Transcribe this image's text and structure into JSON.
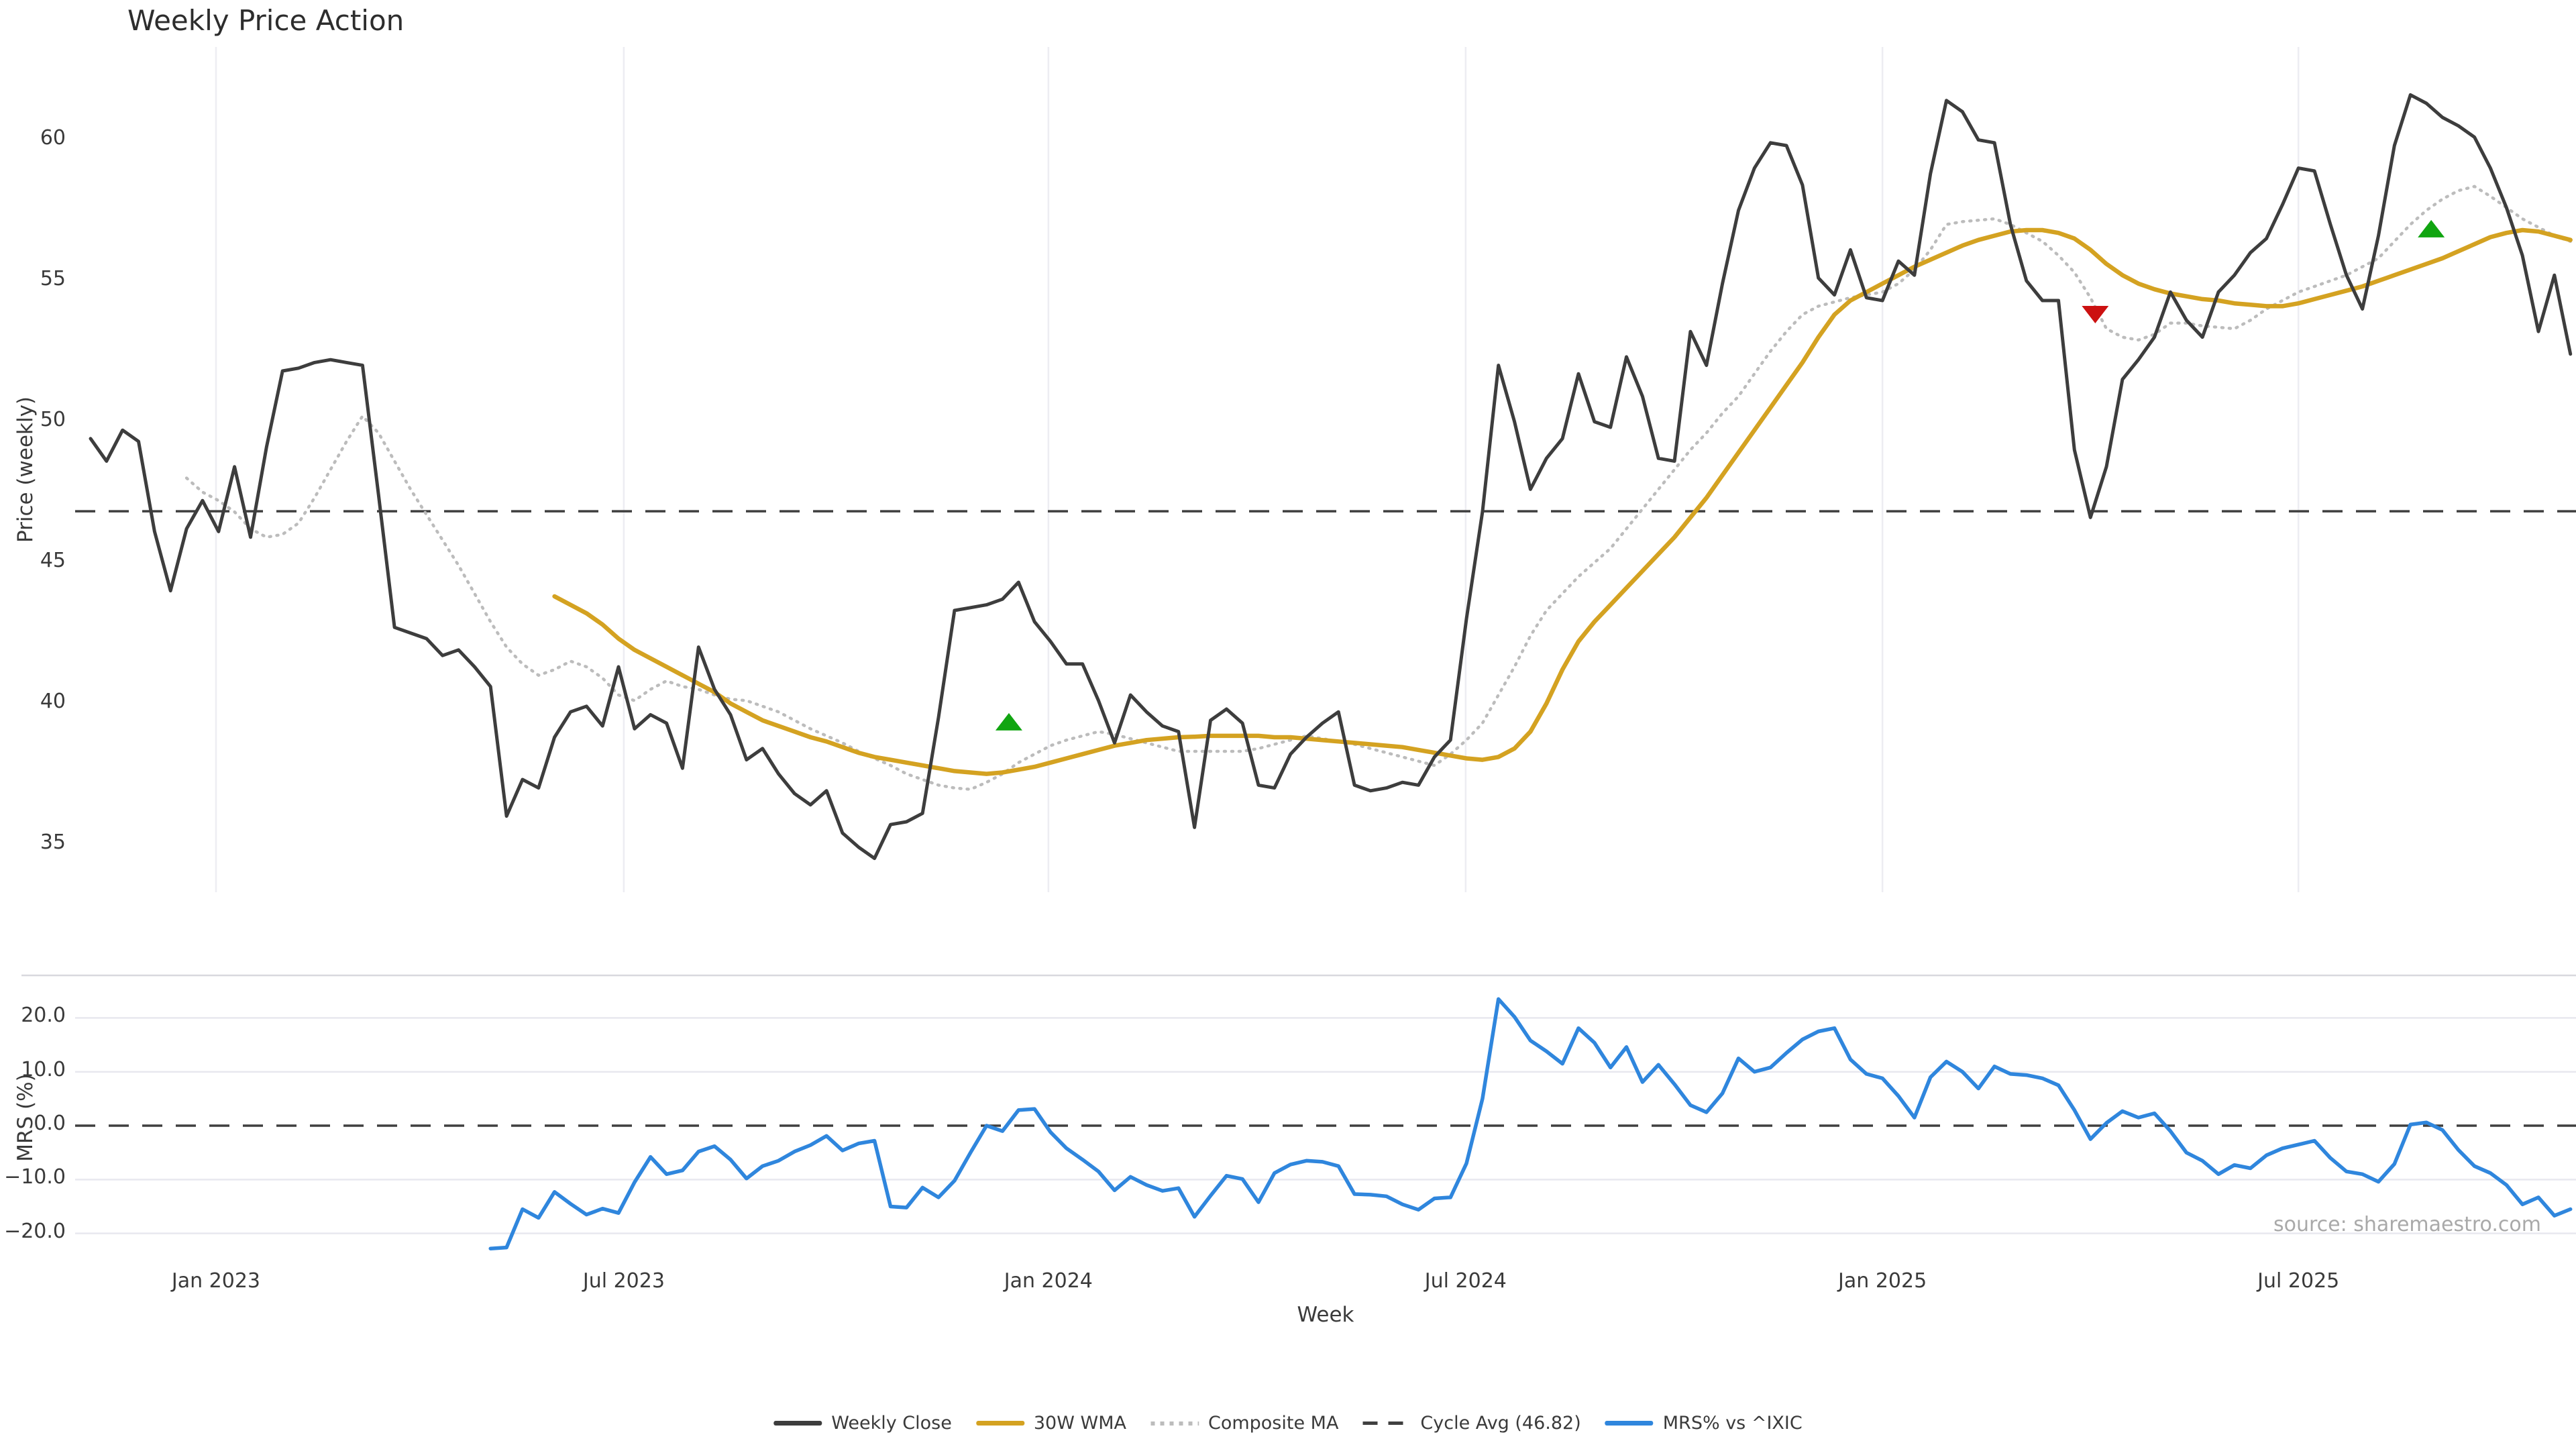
{
  "title": "Weekly Price Action",
  "source": "source: sharemaestro.com",
  "colors": {
    "weekly_close": "#3d3d3d",
    "wma30": "#d4a221",
    "composite_ma": "#bcbcbc",
    "cycle_avg": "#3f3f3f",
    "mrs": "#2f86dd",
    "buy_marker": "#11a511",
    "sell_marker": "#cc1111",
    "gridline_vertical": "#ededf2",
    "gridline_horizontal": "#e8e8ef",
    "panel_border": "#d8d8de",
    "tick_text": "#3a3a3a"
  },
  "top_panel": {
    "ylabel": "Price (weekly)",
    "yticks": [
      35,
      40,
      45,
      50,
      55,
      60
    ],
    "ytick_labels": [
      "35",
      "40",
      "45",
      "50",
      "55",
      "60"
    ],
    "ylim": [
      33.3,
      63.3
    ],
    "cycle_avg_value": 46.82
  },
  "bottom_panel": {
    "ylabel": "MRS (%)",
    "yticks": [
      -20,
      -10,
      0,
      10,
      20
    ],
    "ytick_labels": [
      "−20.0",
      "−10.0",
      "0.0",
      "10.0",
      "20.0"
    ],
    "ylim": [
      -23.9,
      26.9
    ],
    "zero_line_value": 0.0
  },
  "x_axis": {
    "label": "Week",
    "unit": "week index (weekly data)",
    "xlim_weeks": [
      -0.964,
      155.35
    ],
    "ticks": [
      {
        "week": 7.84,
        "label": "Jan 2023"
      },
      {
        "week": 33.33,
        "label": "Jul 2023"
      },
      {
        "week": 59.87,
        "label": "Jan 2024"
      },
      {
        "week": 85.95,
        "label": "Jul 2024"
      },
      {
        "week": 112.0,
        "label": "Jan 2025"
      },
      {
        "week": 138.0,
        "label": "Jul 2025"
      }
    ]
  },
  "legend": [
    {
      "label": "Weekly Close",
      "style": "solid",
      "color": "#3d3d3d"
    },
    {
      "label": "30W WMA",
      "style": "solid",
      "color": "#d4a221"
    },
    {
      "label": "Composite MA",
      "style": "dotted",
      "color": "#bcbcbc"
    },
    {
      "label": "Cycle Avg (46.82)",
      "style": "dashed",
      "color": "#3f3f3f"
    },
    {
      "label": "MRS% vs ^IXIC",
      "style": "solid",
      "color": "#2f86dd"
    }
  ],
  "chart_data": [
    {
      "type": "line",
      "panel": "price",
      "title": "Weekly Price Action",
      "xlabel": "Week",
      "ylabel": "Price (weekly)",
      "ylim": [
        33.3,
        63.3
      ],
      "grid": "vertical-only",
      "legend_position": "bottom-center",
      "cycle_avg": 46.82,
      "series": [
        {
          "name": "Weekly Close",
          "values": [
            49.4,
            48.6,
            49.7,
            49.3,
            46.1,
            44.0,
            46.2,
            47.2,
            46.1,
            48.4,
            45.9,
            49.1,
            51.8,
            51.9,
            52.1,
            52.2,
            52.1,
            52.0,
            47.4,
            42.7,
            42.5,
            42.3,
            41.7,
            41.9,
            41.3,
            40.6,
            36.0,
            37.3,
            37.0,
            38.8,
            39.7,
            39.9,
            39.2,
            41.3,
            39.1,
            39.6,
            39.3,
            37.7,
            42.0,
            40.5,
            39.6,
            38.0,
            38.4,
            37.5,
            36.8,
            36.4,
            36.9,
            35.4,
            34.9,
            34.5,
            35.7,
            35.8,
            36.1,
            39.5,
            43.3,
            43.4,
            43.5,
            43.7,
            44.3,
            42.9,
            42.2,
            41.4,
            41.4,
            40.1,
            38.6,
            40.3,
            39.7,
            39.2,
            39.0,
            35.6,
            39.4,
            39.8,
            39.3,
            37.1,
            37.0,
            38.2,
            38.8,
            39.3,
            39.7,
            37.1,
            36.9,
            37.0,
            37.2,
            37.1,
            38.1,
            38.7,
            43.0,
            46.8,
            52.0,
            50.0,
            47.6,
            48.7,
            49.4,
            51.7,
            50.0,
            49.8,
            52.3,
            50.9,
            48.7,
            48.6,
            53.2,
            52.0,
            54.9,
            57.5,
            59.0,
            59.9,
            59.8,
            58.4,
            55.1,
            54.5,
            56.1,
            54.4,
            54.3,
            55.7,
            55.2,
            58.8,
            61.4,
            61.0,
            60.0,
            59.9,
            57.0,
            55.0,
            54.3,
            54.3,
            49.0,
            46.6,
            48.4,
            51.5,
            52.2,
            53.0,
            54.6,
            53.6,
            53.0,
            54.6,
            55.2,
            56.0,
            56.5,
            57.7,
            59.0,
            58.9,
            57.0,
            55.2,
            54.0,
            56.6,
            59.8,
            61.6,
            61.3,
            60.8,
            60.5,
            60.1,
            59.0,
            57.6,
            55.9,
            53.2,
            55.2,
            52.4
          ]
        },
        {
          "name": "30W WMA",
          "values": [
            null,
            null,
            null,
            null,
            null,
            null,
            null,
            null,
            null,
            null,
            null,
            null,
            null,
            null,
            null,
            null,
            null,
            null,
            null,
            null,
            null,
            null,
            null,
            null,
            null,
            null,
            null,
            null,
            null,
            43.8,
            43.5,
            43.2,
            42.8,
            42.3,
            41.9,
            41.6,
            41.3,
            41.0,
            40.7,
            40.4,
            40.0,
            39.7,
            39.4,
            39.2,
            39.0,
            38.8,
            38.65,
            38.45,
            38.25,
            38.1,
            38.0,
            37.9,
            37.8,
            37.7,
            37.6,
            37.55,
            37.5,
            37.55,
            37.65,
            37.75,
            37.9,
            38.05,
            38.2,
            38.35,
            38.5,
            38.6,
            38.7,
            38.75,
            38.8,
            38.82,
            38.85,
            38.85,
            38.85,
            38.85,
            38.8,
            38.8,
            38.75,
            38.7,
            38.65,
            38.6,
            38.55,
            38.5,
            38.45,
            38.35,
            38.25,
            38.15,
            38.05,
            38.0,
            38.1,
            38.4,
            39.0,
            40.0,
            41.2,
            42.2,
            42.9,
            43.5,
            44.1,
            44.7,
            45.3,
            45.9,
            46.6,
            47.3,
            48.1,
            48.9,
            49.7,
            50.5,
            51.3,
            52.1,
            53.0,
            53.8,
            54.3,
            54.6,
            54.9,
            55.2,
            55.5,
            55.75,
            56.0,
            56.25,
            56.45,
            56.6,
            56.75,
            56.8,
            56.8,
            56.7,
            56.5,
            56.1,
            55.6,
            55.2,
            54.9,
            54.7,
            54.55,
            54.45,
            54.35,
            54.3,
            54.2,
            54.15,
            54.1,
            54.1,
            54.2,
            54.35,
            54.5,
            54.65,
            54.8,
            55.0,
            55.2,
            55.4,
            55.6,
            55.8,
            56.05,
            56.3,
            56.55,
            56.7,
            56.8,
            56.75,
            56.6,
            56.45
          ]
        },
        {
          "name": "Composite MA",
          "values": [
            null,
            null,
            null,
            null,
            null,
            null,
            48.0,
            47.5,
            47.2,
            46.8,
            46.2,
            45.9,
            46.0,
            46.4,
            47.3,
            48.3,
            49.3,
            50.2,
            49.6,
            48.6,
            47.6,
            46.7,
            45.8,
            44.9,
            43.9,
            42.9,
            42.0,
            41.4,
            41.0,
            41.2,
            41.5,
            41.3,
            40.9,
            40.3,
            40.1,
            40.5,
            40.8,
            40.6,
            40.5,
            40.3,
            40.15,
            40.1,
            39.9,
            39.7,
            39.4,
            39.1,
            38.85,
            38.6,
            38.3,
            38.05,
            37.8,
            37.5,
            37.3,
            37.1,
            37.0,
            36.95,
            37.2,
            37.5,
            37.9,
            38.2,
            38.5,
            38.7,
            38.85,
            39.0,
            38.9,
            38.75,
            38.6,
            38.45,
            38.3,
            38.3,
            38.3,
            38.3,
            38.3,
            38.4,
            38.55,
            38.7,
            38.85,
            38.75,
            38.65,
            38.55,
            38.4,
            38.25,
            38.1,
            37.95,
            37.8,
            38.2,
            38.7,
            39.3,
            40.3,
            41.3,
            42.4,
            43.3,
            43.9,
            44.5,
            45.0,
            45.5,
            46.2,
            46.9,
            47.6,
            48.3,
            49.0,
            49.6,
            50.3,
            50.9,
            51.7,
            52.5,
            53.2,
            53.8,
            54.1,
            54.25,
            54.4,
            54.5,
            54.6,
            54.9,
            55.4,
            56.1,
            57.0,
            57.1,
            57.15,
            57.2,
            57.0,
            56.7,
            56.4,
            55.9,
            55.3,
            54.4,
            53.3,
            53.0,
            52.9,
            53.1,
            53.5,
            53.5,
            53.4,
            53.35,
            53.3,
            53.6,
            54.0,
            54.3,
            54.6,
            54.8,
            55.0,
            55.2,
            55.5,
            55.8,
            56.4,
            57.0,
            57.5,
            57.9,
            58.2,
            58.35,
            58.0,
            57.6,
            57.2,
            56.9,
            56.6,
            56.4
          ]
        }
      ],
      "markers": [
        {
          "week": 57.4,
          "price": 39.35,
          "type": "buy"
        },
        {
          "week": 125.3,
          "price": 53.8,
          "type": "sell"
        },
        {
          "week": 146.3,
          "price": 56.85,
          "type": "buy"
        }
      ]
    },
    {
      "type": "line",
      "panel": "mrs",
      "xlabel": "Week",
      "ylabel": "MRS (%)",
      "ylim": [
        -23.9,
        26.9
      ],
      "grid": "horizontal-only",
      "zero_line": 0.0,
      "series": [
        {
          "name": "MRS% vs ^IXIC",
          "values": [
            null,
            null,
            null,
            null,
            null,
            null,
            null,
            null,
            null,
            null,
            null,
            null,
            null,
            null,
            null,
            null,
            null,
            null,
            null,
            null,
            null,
            null,
            null,
            null,
            null,
            -22.8,
            -22.6,
            -15.5,
            -17.1,
            -12.3,
            -14.5,
            -16.5,
            -15.4,
            -16.2,
            -10.5,
            -5.8,
            -9.0,
            -8.3,
            -4.8,
            -3.8,
            -6.3,
            -9.8,
            -7.5,
            -6.5,
            -4.8,
            -3.6,
            -1.9,
            -4.6,
            -3.3,
            -2.8,
            -15.0,
            -15.2,
            -11.5,
            -13.3,
            -10.2,
            -5.0,
            0.0,
            -1.0,
            2.9,
            3.1,
            -1.2,
            -4.2,
            -6.3,
            -8.5,
            -12.0,
            -9.5,
            -11.0,
            -12.1,
            -11.6,
            -16.9,
            -13.0,
            -9.3,
            -9.9,
            -14.2,
            -8.8,
            -7.2,
            -6.5,
            -6.7,
            -7.5,
            -12.7,
            -12.8,
            -13.1,
            -14.6,
            -15.6,
            -13.5,
            -13.3,
            -7.0,
            5.0,
            23.5,
            20.2,
            15.8,
            13.8,
            11.5,
            18.1,
            15.4,
            10.8,
            14.6,
            8.1,
            11.3,
            7.7,
            3.8,
            2.5,
            6.0,
            12.5,
            10.0,
            10.8,
            13.5,
            16.0,
            17.5,
            18.1,
            12.3,
            9.6,
            8.8,
            5.5,
            1.5,
            9.0,
            11.9,
            10.0,
            6.9,
            11.0,
            9.6,
            9.4,
            8.8,
            7.5,
            2.9,
            -2.5,
            0.5,
            2.7,
            1.5,
            2.3,
            -1.0,
            -5.0,
            -6.5,
            -9.0,
            -7.3,
            -7.9,
            -5.5,
            -4.2,
            -3.5,
            -2.8,
            -6.0,
            -8.5,
            -9.0,
            -10.4,
            -7.1,
            0.2,
            0.6,
            -0.8,
            -4.5,
            -7.5,
            -8.8,
            -11.0,
            -14.6,
            -13.3,
            -16.7,
            -15.5
          ]
        }
      ]
    }
  ]
}
